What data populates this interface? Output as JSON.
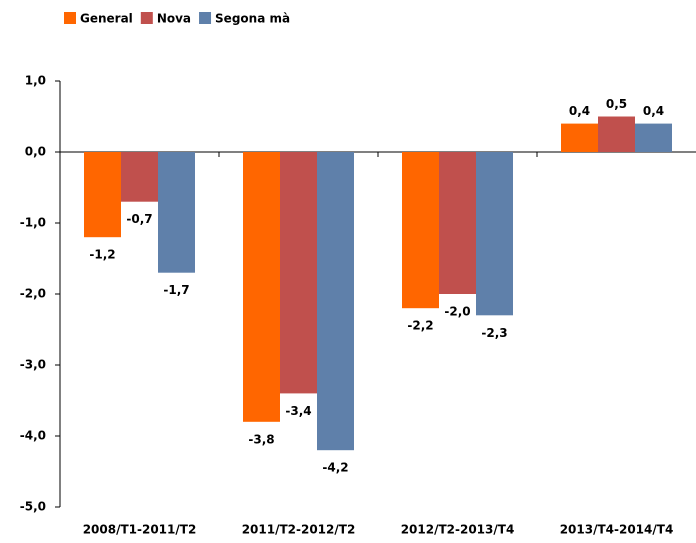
{
  "chart_data": {
    "type": "bar",
    "categories": [
      "2008/T1-2011/T2",
      "2011/T2-2012/T2",
      "2012/T2-2013/T4",
      "2013/T4-2014/T4"
    ],
    "series": [
      {
        "name": "General",
        "color": "#ff6600",
        "values": [
          -1.2,
          -3.8,
          -2.2,
          0.4
        ],
        "value_labels": [
          "-1,2",
          "-3,8",
          "-2,2",
          "0,4"
        ]
      },
      {
        "name": "Nova",
        "color": "#c0504d",
        "values": [
          -0.7,
          -3.4,
          -2.0,
          0.5
        ],
        "value_labels": [
          "-0,7",
          "-3,4",
          "-2,0",
          "0,5"
        ]
      },
      {
        "name": "Segona mà",
        "color": "#5f80aa",
        "values": [
          -1.7,
          -4.2,
          -2.3,
          0.4
        ],
        "value_labels": [
          "-1,7",
          "-4,2",
          "-2,3",
          "0,4"
        ]
      }
    ],
    "ylim": [
      -5,
      1
    ],
    "yticks": [
      {
        "value": -5,
        "label": "-5,0"
      },
      {
        "value": -4,
        "label": "-4,0"
      },
      {
        "value": -3,
        "label": "-3,0"
      },
      {
        "value": -2,
        "label": "-2,0"
      },
      {
        "value": -1,
        "label": "-1,0"
      },
      {
        "value": 0,
        "label": "0,0"
      },
      {
        "value": 1,
        "label": "1,0"
      }
    ],
    "legend": "top-left"
  }
}
